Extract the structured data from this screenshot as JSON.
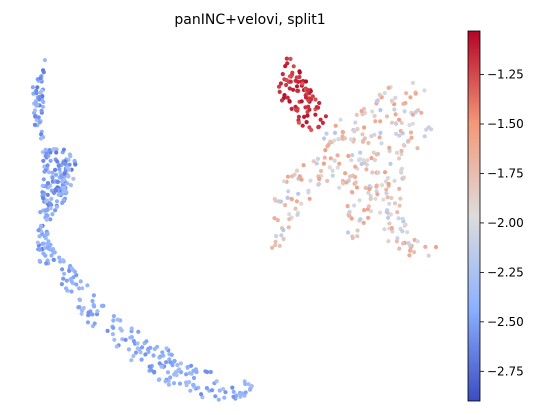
{
  "chart_data": {
    "type": "scatter",
    "title": "panINC+velovi, split1",
    "xlabel": "",
    "ylabel": "",
    "axes_visible": false,
    "colormap": "coolwarm",
    "colorbar": {
      "range": [
        -2.9,
        -1.03
      ],
      "ticks": [
        -1.25,
        -1.5,
        -1.75,
        -2.0,
        -2.25,
        -2.5,
        -2.75
      ],
      "tick_labels": [
        "−1.25",
        "−1.50",
        "−1.75",
        "−2.00",
        "−2.25",
        "−2.50",
        "−2.75"
      ],
      "placement": "right"
    },
    "clusters": [
      {
        "name": "left trajectory",
        "value_range": [
          -2.7,
          -2.25
        ],
        "path": [
          [
            0.45,
            0.24
          ],
          [
            0.32,
            0.86
          ],
          [
            0.04,
            1.26
          ],
          [
            0.12,
            1.96
          ],
          [
            0.07,
            2.36
          ],
          [
            0.35,
            2.86
          ],
          [
            0.65,
            3.06
          ],
          [
            1.05,
            3.06
          ],
          [
            1.45,
            3.56
          ],
          [
            1.35,
            3.86
          ],
          [
            1.15,
            4.36
          ],
          [
            0.95,
            4.76
          ],
          [
            0.65,
            5.06
          ],
          [
            0.55,
            5.46
          ],
          [
            0.65,
            5.96
          ],
          [
            0.85,
            6.16
          ],
          [
            0.65,
            6.56
          ],
          [
            0.35,
            6.66
          ],
          [
            0.2,
            6.46
          ],
          [
            0.25,
            5.46
          ],
          [
            0.35,
            4.46
          ]
        ],
        "point_count": 240
      },
      {
        "name": "bottom arm",
        "value_range": [
          -2.6,
          -2.25
        ],
        "path": [
          [
            0.85,
            6.16
          ],
          [
            1.45,
            6.86
          ],
          [
            1.65,
            6.96
          ],
          [
            2.05,
            7.56
          ],
          [
            2.45,
            7.96
          ],
          [
            2.85,
            8.26
          ],
          [
            3.45,
            8.56
          ],
          [
            4.05,
            8.96
          ],
          [
            4.55,
            9.36
          ],
          [
            5.05,
            9.66
          ],
          [
            5.55,
            9.76
          ],
          [
            6.05,
            9.96
          ],
          [
            6.55,
            9.96
          ],
          [
            6.65,
            10.16
          ],
          [
            6.35,
            10.56
          ],
          [
            5.55,
            10.56
          ],
          [
            4.95,
            10.46
          ],
          [
            4.55,
            10.26
          ],
          [
            3.95,
            10.06
          ],
          [
            3.45,
            9.66
          ],
          [
            2.95,
            9.36
          ],
          [
            2.45,
            8.86
          ],
          [
            1.75,
            8.36
          ],
          [
            1.25,
            7.76
          ],
          [
            0.95,
            7.16
          ]
        ],
        "point_count": 190
      },
      {
        "name": "right top",
        "value_range": [
          -1.3,
          -1.05
        ],
        "path": [
          [
            7.7,
            0.24
          ],
          [
            8.25,
            1.06
          ],
          [
            8.65,
            1.66
          ],
          [
            8.95,
            2.16
          ],
          [
            8.45,
            2.56
          ],
          [
            8.05,
            2.36
          ],
          [
            7.6,
            1.86
          ],
          [
            7.4,
            1.26
          ]
        ],
        "point_count": 90
      },
      {
        "name": "right body",
        "value_range": [
          -2.2,
          -1.55
        ],
        "path": [
          [
            8.85,
            2.46
          ],
          [
            9.45,
            2.06
          ],
          [
            10.25,
            1.56
          ],
          [
            10.75,
            1.16
          ],
          [
            11.45,
            1.06
          ],
          [
            11.95,
            1.36
          ],
          [
            12.05,
            2.56
          ],
          [
            11.45,
            3.26
          ],
          [
            11.15,
            3.96
          ],
          [
            11.05,
            4.96
          ],
          [
            11.35,
            5.66
          ],
          [
            12.25,
            5.96
          ],
          [
            12.35,
            6.26
          ],
          [
            11.15,
            6.26
          ],
          [
            10.65,
            5.86
          ],
          [
            10.45,
            5.06
          ],
          [
            10.05,
            5.56
          ],
          [
            9.55,
            5.86
          ],
          [
            9.35,
            5.26
          ],
          [
            9.45,
            4.46
          ],
          [
            8.85,
            4.06
          ],
          [
            8.45,
            4.46
          ],
          [
            7.95,
            5.16
          ],
          [
            7.55,
            5.86
          ],
          [
            7.25,
            6.36
          ],
          [
            7.15,
            5.46
          ],
          [
            7.35,
            4.26
          ],
          [
            7.85,
            3.66
          ],
          [
            8.55,
            3.16
          ]
        ],
        "point_count": 300
      }
    ]
  }
}
